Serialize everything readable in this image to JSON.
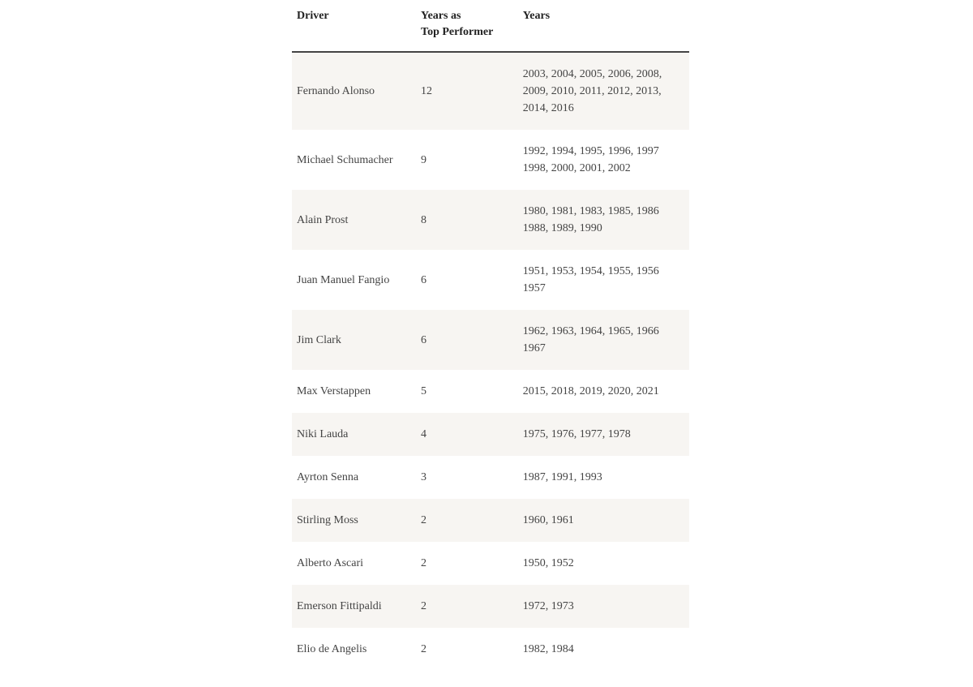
{
  "table": {
    "columns": [
      {
        "label": "Driver"
      },
      {
        "label": "Years as\nTop Performer"
      },
      {
        "label": "Years"
      }
    ],
    "rows": [
      {
        "driver": "Fernando Alonso",
        "count": "12",
        "years": "2003, 2004, 2005, 2006, 2008, 2009, 2010, 2011, 2012, 2013, 2014, 2016"
      },
      {
        "driver": "Michael Schumacher",
        "count": "9",
        "years": "1992, 1994, 1995, 1996, 1997 1998, 2000, 2001, 2002"
      },
      {
        "driver": "Alain Prost",
        "count": "8",
        "years": "1980, 1981, 1983, 1985, 1986 1988, 1989, 1990"
      },
      {
        "driver": "Juan Manuel Fangio",
        "count": "6",
        "years": "1951, 1953, 1954, 1955, 1956 1957"
      },
      {
        "driver": "Jim Clark",
        "count": "6",
        "years": "1962, 1963, 1964, 1965, 1966 1967"
      },
      {
        "driver": "Max Verstappen",
        "count": "5",
        "years": "2015, 2018, 2019, 2020, 2021"
      },
      {
        "driver": "Niki Lauda",
        "count": "4",
        "years": "1975, 1976, 1977, 1978"
      },
      {
        "driver": "Ayrton Senna",
        "count": "3",
        "years": "1987, 1991, 1993"
      },
      {
        "driver": "Stirling Moss",
        "count": "2",
        "years": "1960, 1961"
      },
      {
        "driver": "Alberto Ascari",
        "count": "2",
        "years": "1950, 1952"
      },
      {
        "driver": "Emerson Fittipaldi",
        "count": "2",
        "years": "1972, 1973"
      },
      {
        "driver": "Elio de Angelis",
        "count": "2",
        "years": "1982, 1984"
      }
    ],
    "header_fontsize": 14,
    "body_fontsize": 14,
    "stripe_color": "#f7f5f2",
    "background_color": "#ffffff",
    "border_color": "#444444",
    "text_color": "#444444",
    "col_widths": {
      "driver": 150,
      "count": 120,
      "years": 220
    }
  }
}
